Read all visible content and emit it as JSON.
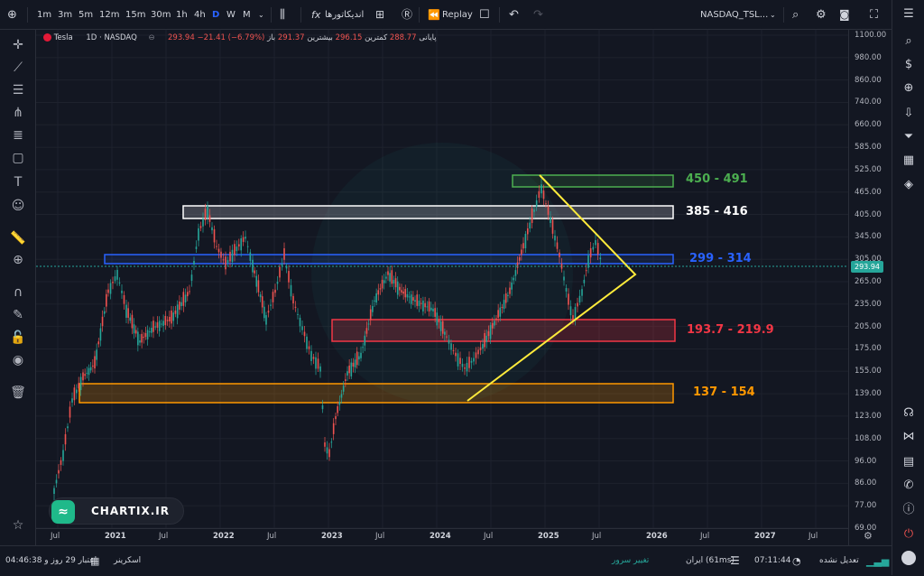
{
  "topbar": {
    "intervals": [
      "1m",
      "3m",
      "5m",
      "12m",
      "15m",
      "30m",
      "1h",
      "4h",
      "D",
      "W",
      "M"
    ],
    "active_interval": "D",
    "indicators_label": "اندیکاتورها",
    "replay_label": "Replay",
    "symbol": "NASDAQ_TSL..."
  },
  "legend": {
    "name": "Tesla",
    "interval": "1D",
    "exchange": "NASDAQ",
    "open_label": "باز",
    "open_value": "291.37",
    "high_label": "بیشترین",
    "high_value": "296.15",
    "low_label": "کمترین",
    "low_value": "288.77",
    "close_label": "پایانی",
    "close_value": "293.94",
    "change": "−21.41 (−6.79%)"
  },
  "zones": [
    {
      "label": "450 - 491",
      "color": "#4caf50"
    },
    {
      "label": "385 - 416",
      "color": "#ffffff"
    },
    {
      "label": "299 - 314",
      "color": "#2962ff"
    },
    {
      "label": "193.7 - 219.9",
      "color": "#f23645"
    },
    {
      "label": "137 - 154",
      "color": "#ff9800"
    }
  ],
  "yaxis": {
    "ticks": [
      "1100.00",
      "980.00",
      "860.00",
      "740.00",
      "660.00",
      "585.00",
      "525.00",
      "465.00",
      "405.00",
      "345.00",
      "305.00",
      "265.00",
      "235.00",
      "205.00",
      "175.00",
      "155.00",
      "139.00",
      "123.00",
      "108.00",
      "96.00",
      "86.00",
      "77.00",
      "69.00"
    ],
    "price_tag": "293.94"
  },
  "xaxis": {
    "labels": [
      "Jul",
      "2021",
      "Jul",
      "2022",
      "Jul",
      "2023",
      "Jul",
      "2024",
      "Jul",
      "2025",
      "Jul",
      "2026",
      "Jul",
      "2027",
      "Jul"
    ]
  },
  "watermark": "CHARTIX.IR",
  "bottombar": {
    "credit": "اعتبار 29 روز و 04:46:38",
    "screener": "اسکرینر",
    "change_server": "تغییر سرور",
    "server": "ایران (61ms)",
    "time": "07:11:44",
    "adjust": "تعدیل نشده"
  },
  "colors": {
    "up": "#26a69a",
    "down": "#ef5350",
    "accent": "#2962ff",
    "triangle": "#ffeb3b"
  }
}
